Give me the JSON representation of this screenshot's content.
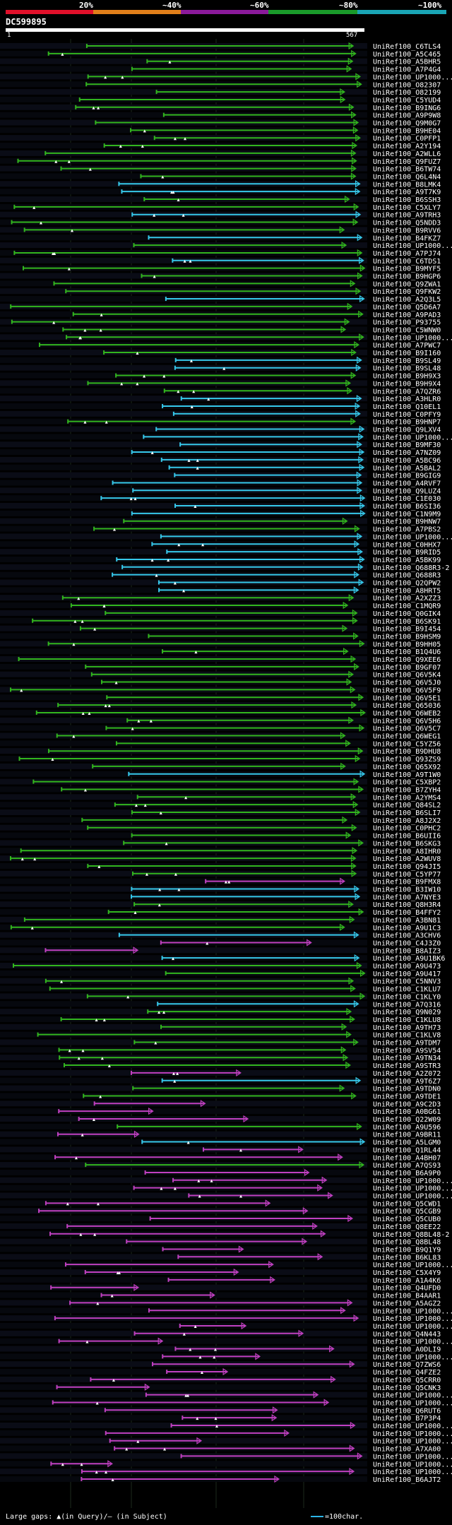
{
  "header": {
    "scale_labels": [
      "20%",
      "~40%",
      "~60%",
      "~80%",
      "~100%"
    ],
    "scale_colors": [
      "#e0102a",
      "#e07f1a",
      "#8a1a9a",
      "#1a9a2a",
      "#1aa5b5"
    ],
    "query_id": "DC599895",
    "query_start": "1",
    "query_end": "567"
  },
  "footer": {
    "gaps_text": "Large gaps: ▲(in Query)/— (in Subject)",
    "legend_text": "=100char."
  },
  "colors": {
    "green": "#32b51e",
    "cyan": "#36c8ea",
    "magenta": "#c040c0",
    "text": "#ffffff",
    "dot": "#ffffff"
  },
  "hits": [
    {
      "label": "UniRef100_C6TLS4",
      "color": "green"
    },
    {
      "label": "UniRef100_A5C465",
      "color": "green"
    },
    {
      "label": "UniRef100_A5BHR5",
      "color": "green"
    },
    {
      "label": "UniRef100_A7P4G4",
      "color": "green"
    },
    {
      "label": "UniRef100_UP1000...",
      "color": "green"
    },
    {
      "label": "UniRef100_O82307",
      "color": "green"
    },
    {
      "label": "UniRef100_O82199",
      "color": "green"
    },
    {
      "label": "UniRef100_C5YUD4",
      "color": "green"
    },
    {
      "label": "UniRef100_B9ING6",
      "color": "green"
    },
    {
      "label": "UniRef100_A9P9W8",
      "color": "green"
    },
    {
      "label": "UniRef100_Q9M0G7",
      "color": "green"
    },
    {
      "label": "UniRef100_B9HE04",
      "color": "green"
    },
    {
      "label": "UniRef100_C0PFP1",
      "color": "green"
    },
    {
      "label": "UniRef100_A2Y194",
      "color": "green"
    },
    {
      "label": "UniRef100_A2WLL6",
      "color": "green"
    },
    {
      "label": "UniRef100_Q9FUZ7",
      "color": "green"
    },
    {
      "label": "UniRef100_B6TW74",
      "color": "green"
    },
    {
      "label": "UniRef100_Q6L4N4",
      "color": "green"
    },
    {
      "label": "UniRef100_B8LMK4",
      "color": "cyan"
    },
    {
      "label": "UniRef100_A9T7K9",
      "color": "cyan"
    },
    {
      "label": "UniRef100_B6SSH3",
      "color": "green"
    },
    {
      "label": "UniRef100_C5XLY7",
      "color": "green"
    },
    {
      "label": "UniRef100_A9TRH3",
      "color": "cyan"
    },
    {
      "label": "UniRef100_Q5NDD3",
      "color": "green"
    },
    {
      "label": "UniRef100_B9RVV6",
      "color": "green"
    },
    {
      "label": "UniRef100_B4FKZ7",
      "color": "cyan"
    },
    {
      "label": "UniRef100_UP1000...",
      "color": "green"
    },
    {
      "label": "UniRef100_A7PJ74",
      "color": "green"
    },
    {
      "label": "UniRef100_C6TDS1",
      "color": "cyan"
    },
    {
      "label": "UniRef100_B9MYF5",
      "color": "green"
    },
    {
      "label": "UniRef100_B9HGP6",
      "color": "green"
    },
    {
      "label": "UniRef100_Q9ZWA1",
      "color": "green"
    },
    {
      "label": "UniRef100_Q9FKW2",
      "color": "green"
    },
    {
      "label": "UniRef100_A2Q3L5",
      "color": "cyan"
    },
    {
      "label": "UniRef100_Q5D6A7",
      "color": "green"
    },
    {
      "label": "UniRef100_A9PAD3",
      "color": "green"
    },
    {
      "label": "UniRef100_P93755",
      "color": "green"
    },
    {
      "label": "UniRef100_C5WNW0",
      "color": "green"
    },
    {
      "label": "UniRef100_UP1000...",
      "color": "green"
    },
    {
      "label": "UniRef100_A7PWC7",
      "color": "green"
    },
    {
      "label": "UniRef100_B9I160",
      "color": "green"
    },
    {
      "label": "UniRef100_B9SL49",
      "color": "cyan"
    },
    {
      "label": "UniRef100_B9SL48",
      "color": "cyan"
    },
    {
      "label": "UniRef100_B9H9X3",
      "color": "green"
    },
    {
      "label": "UniRef100_B9H9X4",
      "color": "green"
    },
    {
      "label": "UniRef100_A7QZR6",
      "color": "green"
    },
    {
      "label": "UniRef100_A3HLR0",
      "color": "cyan"
    },
    {
      "label": "UniRef100_Q10EL1",
      "color": "cyan"
    },
    {
      "label": "UniRef100_C0PFY9",
      "color": "cyan"
    },
    {
      "label": "UniRef100_B9HNP7",
      "color": "green"
    },
    {
      "label": "UniRef100_Q9LXV4",
      "color": "cyan"
    },
    {
      "label": "UniRef100_UP1000...",
      "color": "cyan"
    },
    {
      "label": "UniRef100_B9MF30",
      "color": "cyan"
    },
    {
      "label": "UniRef100_A7NZ09",
      "color": "cyan"
    },
    {
      "label": "UniRef100_A5BC96",
      "color": "cyan"
    },
    {
      "label": "UniRef100_A5BAL2",
      "color": "cyan"
    },
    {
      "label": "UniRef100_B9GIG9",
      "color": "cyan"
    },
    {
      "label": "UniRef100_A4RVF7",
      "color": "cyan"
    },
    {
      "label": "UniRef100_Q9LUZ4",
      "color": "cyan"
    },
    {
      "label": "UniRef100_C1E030",
      "color": "cyan"
    },
    {
      "label": "UniRef100_B6SI36",
      "color": "cyan"
    },
    {
      "label": "UniRef100_C1N9M9",
      "color": "cyan"
    },
    {
      "label": "UniRef100_B9HNW7",
      "color": "green"
    },
    {
      "label": "UniRef100_A7PBS2",
      "color": "green"
    },
    {
      "label": "UniRef100_UP1000...",
      "color": "cyan"
    },
    {
      "label": "UniRef100_C0HHX7",
      "color": "cyan"
    },
    {
      "label": "UniRef100_B9RID5",
      "color": "cyan"
    },
    {
      "label": "UniRef100_A5BK99",
      "color": "cyan"
    },
    {
      "label": "UniRef100_Q688R3-2",
      "color": "cyan"
    },
    {
      "label": "UniRef100_Q688R3",
      "color": "cyan"
    },
    {
      "label": "UniRef100_Q2QPW2",
      "color": "cyan"
    },
    {
      "label": "UniRef100_A8HRT5",
      "color": "cyan"
    },
    {
      "label": "UniRef100_A2XZZ3",
      "color": "green"
    },
    {
      "label": "UniRef100_C1MQR9",
      "color": "green"
    },
    {
      "label": "UniRef100_Q0GIK4",
      "color": "green"
    },
    {
      "label": "UniRef100_B6SK91",
      "color": "green"
    },
    {
      "label": "UniRef100_B9I454",
      "color": "green"
    },
    {
      "label": "UniRef100_B9HSM9",
      "color": "green"
    },
    {
      "label": "UniRef100_B9HH05",
      "color": "green"
    },
    {
      "label": "UniRef100_B1Q4U6",
      "color": "green"
    },
    {
      "label": "UniRef100_Q9XEE6",
      "color": "green"
    },
    {
      "label": "UniRef100_B9GF07",
      "color": "green"
    },
    {
      "label": "UniRef100_Q6V5K4",
      "color": "green"
    },
    {
      "label": "UniRef100_Q6V5J0",
      "color": "green"
    },
    {
      "label": "UniRef100_Q6V5F9",
      "color": "green"
    },
    {
      "label": "UniRef100_Q6V5E1",
      "color": "green"
    },
    {
      "label": "UniRef100_Q65036",
      "color": "green"
    },
    {
      "label": "UniRef100_Q6WEB2",
      "color": "green"
    },
    {
      "label": "UniRef100_Q6V5H6",
      "color": "green"
    },
    {
      "label": "UniRef100_Q6V5C7",
      "color": "green"
    },
    {
      "label": "UniRef100_Q6WEG1",
      "color": "green"
    },
    {
      "label": "UniRef100_C5YZ56",
      "color": "green"
    },
    {
      "label": "UniRef100_B9DHU8",
      "color": "green"
    },
    {
      "label": "UniRef100_Q93ZS9",
      "color": "green"
    },
    {
      "label": "UniRef100_Q65X92",
      "color": "green"
    },
    {
      "label": "UniRef100_A9T1W0",
      "color": "cyan"
    },
    {
      "label": "UniRef100_C5XBP2",
      "color": "green"
    },
    {
      "label": "UniRef100_B7ZYH4",
      "color": "green"
    },
    {
      "label": "UniRef100_A2YMS4",
      "color": "green"
    },
    {
      "label": "UniRef100_Q84SL2",
      "color": "green"
    },
    {
      "label": "UniRef100_B6SLI7",
      "color": "green"
    },
    {
      "label": "UniRef100_A8J2X2",
      "color": "green"
    },
    {
      "label": "UniRef100_C0PHC2",
      "color": "green"
    },
    {
      "label": "UniRef100_B6UII6",
      "color": "green"
    },
    {
      "label": "UniRef100_B6SKG3",
      "color": "green"
    },
    {
      "label": "UniRef100_A8IHR0",
      "color": "green"
    },
    {
      "label": "UniRef100_A2WUV8",
      "color": "green"
    },
    {
      "label": "UniRef100_Q94JI5",
      "color": "green"
    },
    {
      "label": "UniRef100_C5YP77",
      "color": "green"
    },
    {
      "label": "UniRef100_B9FMX8",
      "color": "magenta"
    },
    {
      "label": "UniRef100_B3IW10",
      "color": "cyan"
    },
    {
      "label": "UniRef100_A7NYE3",
      "color": "cyan"
    },
    {
      "label": "UniRef100_Q8H3R4",
      "color": "green"
    },
    {
      "label": "UniRef100_B4FFY2",
      "color": "green"
    },
    {
      "label": "UniRef100_A3BN81",
      "color": "green"
    },
    {
      "label": "UniRef100_A9U1C3",
      "color": "green"
    },
    {
      "label": "UniRef100_A3CHV6",
      "color": "cyan"
    },
    {
      "label": "UniRef100_C4J3Z0",
      "color": "magenta"
    },
    {
      "label": "UniRef100_B8AIZ3",
      "color": "magenta"
    },
    {
      "label": "UniRef100_A9U1BK6",
      "color": "cyan"
    },
    {
      "label": "UniRef100_A9U473",
      "color": "green"
    },
    {
      "label": "UniRef100_A9U417",
      "color": "green"
    },
    {
      "label": "UniRef100_C5NNV3",
      "color": "green"
    },
    {
      "label": "UniRef100_C1KLU7",
      "color": "green"
    },
    {
      "label": "UniRef100_C1KLY0",
      "color": "green"
    },
    {
      "label": "UniRef100_A7Q316",
      "color": "cyan"
    },
    {
      "label": "UniRef100_Q9N029",
      "color": "green"
    },
    {
      "label": "UniRef100_C1KLU8",
      "color": "green"
    },
    {
      "label": "UniRef100_A9TH73",
      "color": "green"
    },
    {
      "label": "UniRef100_C1KLV8",
      "color": "green"
    },
    {
      "label": "UniRef100_A9TDM7",
      "color": "green"
    },
    {
      "label": "UniRef100_A9SV54",
      "color": "green"
    },
    {
      "label": "UniRef100_A9TN34",
      "color": "green"
    },
    {
      "label": "UniRef100_A9STR3",
      "color": "green"
    },
    {
      "label": "UniRef100_A2Z072",
      "color": "magenta"
    },
    {
      "label": "UniRef100_A9T6Z7",
      "color": "cyan"
    },
    {
      "label": "UniRef100_A9TDN0",
      "color": "green"
    },
    {
      "label": "UniRef100_A9TDE1",
      "color": "green"
    },
    {
      "label": "UniRef100_A9C2D3",
      "color": "magenta"
    },
    {
      "label": "UniRef100_A0BG61",
      "color": "magenta"
    },
    {
      "label": "UniRef100_Q22W09",
      "color": "magenta"
    },
    {
      "label": "UniRef100_A9U596",
      "color": "green"
    },
    {
      "label": "UniRef100_A9BR11",
      "color": "magenta"
    },
    {
      "label": "UniRef100_A5LGM0",
      "color": "cyan"
    },
    {
      "label": "UniRef100_Q1RL44",
      "color": "magenta"
    },
    {
      "label": "UniRef100_A4BH07",
      "color": "magenta"
    },
    {
      "label": "UniRef100_A7QS93",
      "color": "green"
    },
    {
      "label": "UniRef100_B6A9P0",
      "color": "magenta"
    },
    {
      "label": "UniRef100_UP1000...",
      "color": "magenta"
    },
    {
      "label": "UniRef100_UP1000...",
      "color": "magenta"
    },
    {
      "label": "UniRef100_UP1000...",
      "color": "magenta"
    },
    {
      "label": "UniRef100_Q5CWD1",
      "color": "magenta"
    },
    {
      "label": "UniRef100_Q5CGB9",
      "color": "magenta"
    },
    {
      "label": "UniRef100_Q5CUB0",
      "color": "magenta"
    },
    {
      "label": "UniRef100_Q8EE22",
      "color": "magenta"
    },
    {
      "label": "UniRef100_Q8BL48-2",
      "color": "magenta"
    },
    {
      "label": "UniRef100_Q8BL48",
      "color": "magenta"
    },
    {
      "label": "UniRef100_B9Q1Y9",
      "color": "magenta"
    },
    {
      "label": "UniRef100_B6KL83",
      "color": "magenta"
    },
    {
      "label": "UniRef100_UP1000...",
      "color": "magenta"
    },
    {
      "label": "UniRef100_C5X4Y9",
      "color": "magenta"
    },
    {
      "label": "UniRef100_A1A4K6",
      "color": "magenta"
    },
    {
      "label": "UniRef100_Q4UFD0",
      "color": "magenta"
    },
    {
      "label": "UniRef100_B4AAR1",
      "color": "magenta"
    },
    {
      "label": "UniRef100_A5AGZ2",
      "color": "magenta"
    },
    {
      "label": "UniRef100_UP1000...",
      "color": "magenta"
    },
    {
      "label": "UniRef100_UP1000...",
      "color": "magenta"
    },
    {
      "label": "UniRef100_UP1000...",
      "color": "magenta"
    },
    {
      "label": "UniRef100_Q4N443",
      "color": "magenta"
    },
    {
      "label": "UniRef100_UP1000...",
      "color": "magenta"
    },
    {
      "label": "UniRef100_A0DLI9",
      "color": "magenta"
    },
    {
      "label": "UniRef100_UP1000...",
      "color": "magenta"
    },
    {
      "label": "UniRef100_Q7ZWS6",
      "color": "magenta"
    },
    {
      "label": "UniRef100_Q4FZE2",
      "color": "magenta"
    },
    {
      "label": "UniRef100_Q5CRR0",
      "color": "magenta"
    },
    {
      "label": "UniRef100_Q5CNK3",
      "color": "magenta"
    },
    {
      "label": "UniRef100_UP1000...",
      "color": "magenta"
    },
    {
      "label": "UniRef100_UP1000...",
      "color": "magenta"
    },
    {
      "label": "UniRef100_Q6RUT6",
      "color": "magenta"
    },
    {
      "label": "UniRef100_B7P3P4",
      "color": "magenta"
    },
    {
      "label": "UniRef100_UP1000...",
      "color": "magenta"
    },
    {
      "label": "UniRef100_UP1000...",
      "color": "magenta"
    },
    {
      "label": "UniRef100_UP1000...",
      "color": "magenta"
    },
    {
      "label": "UniRef100_A7XA00",
      "color": "magenta"
    },
    {
      "label": "UniRef100_UP1000...",
      "color": "magenta"
    },
    {
      "label": "UniRef100_UP1000...",
      "color": "magenta"
    },
    {
      "label": "UniRef100_UP1000...",
      "color": "magenta"
    },
    {
      "label": "UniRef100_B6AJT2",
      "color": "magenta"
    }
  ]
}
